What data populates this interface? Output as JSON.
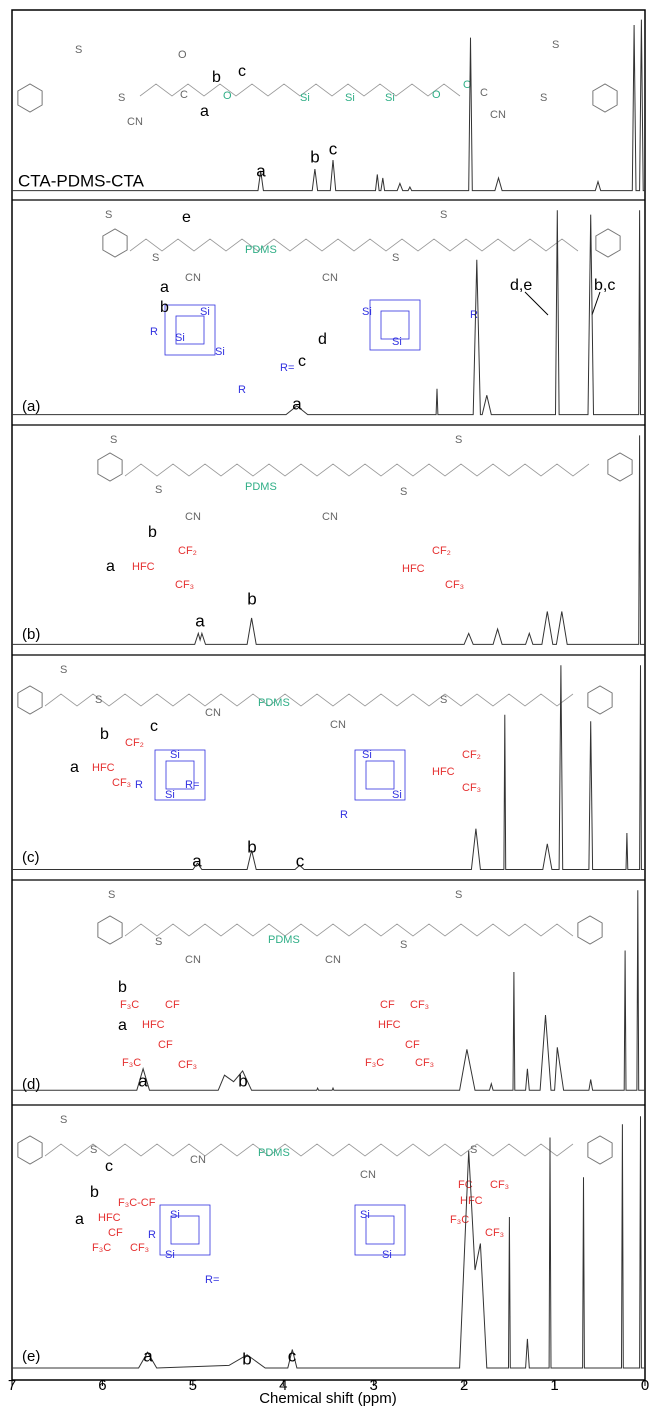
{
  "chart_data": {
    "type": "line",
    "xlabel": "Chemical shift (ppm)",
    "xlim": [
      7,
      0
    ],
    "xticks": [
      7,
      6,
      5,
      4,
      3,
      2,
      1,
      0
    ],
    "ylim": [
      0,
      100
    ],
    "panels": [
      {
        "label": "CTA-PDMS-CTA",
        "peak_labels": [
          "a",
          "b",
          "c"
        ],
        "structure": [
          {
            "text": "S",
            "color": "#666"
          },
          {
            "text": "S",
            "color": "#666"
          },
          {
            "text": "CN",
            "color": "#666"
          },
          {
            "text": "O",
            "color": "#666"
          },
          {
            "text": "C",
            "color": "#666"
          },
          {
            "text": "a",
            "color": "#000"
          },
          {
            "text": "b",
            "color": "#000"
          },
          {
            "text": "c",
            "color": "#000"
          },
          {
            "text": "O",
            "color": "#2fae86"
          },
          {
            "text": "Si",
            "color": "#2fae86"
          },
          {
            "text": "Si",
            "color": "#2fae86"
          },
          {
            "text": "Si",
            "color": "#2fae86"
          },
          {
            "text": "O",
            "color": "#2fae86"
          },
          {
            "text": "O",
            "color": "#2fae86"
          },
          {
            "text": "C",
            "color": "#666"
          },
          {
            "text": "CN",
            "color": "#666"
          },
          {
            "text": "S",
            "color": "#666"
          },
          {
            "text": "S",
            "color": "#666"
          }
        ],
        "series": [
          {
            "color": "#333",
            "x": [
              7,
              4.28,
              4.25,
              4.22,
              3.68,
              3.65,
              3.62,
              3.48,
              3.45,
              3.42,
              2.98,
              2.96,
              2.94,
              2.92,
              2.9,
              2.88,
              2.74,
              2.71,
              2.68,
              2.62,
              2.6,
              2.58,
              1.95,
              1.93,
              1.91,
              1.66,
              1.62,
              1.58,
              0.55,
              0.52,
              0.49,
              0.14,
              0.12,
              0.1,
              0.06,
              0.04,
              0.02,
              0
            ],
            "values": [
              3,
              3,
              14,
              3,
              3,
              15,
              3,
              3,
              20,
              3,
              3,
              12,
              3,
              3,
              10,
              3,
              3,
              7,
              3,
              3,
              5,
              3,
              3,
              88,
              3,
              3,
              10,
              3,
              3,
              8,
              3,
              3,
              95,
              3,
              3,
              98,
              3,
              3
            ]
          }
        ]
      },
      {
        "label": "(a)",
        "peak_labels": [
          "a"
        ],
        "structure": [
          {
            "text": "S",
            "color": "#666"
          },
          {
            "text": "S",
            "color": "#666"
          },
          {
            "text": "e",
            "color": "#000"
          },
          {
            "text": "CN",
            "color": "#666"
          },
          {
            "text": "PDMS",
            "color": "#2fae86"
          },
          {
            "text": "CN",
            "color": "#666"
          },
          {
            "text": "S",
            "color": "#666"
          },
          {
            "text": "S",
            "color": "#666"
          },
          {
            "text": "a",
            "color": "#000"
          },
          {
            "text": "b",
            "color": "#000"
          },
          {
            "text": "Si",
            "color": "#3030e0"
          },
          {
            "text": "Si",
            "color": "#3030e0"
          },
          {
            "text": "Si",
            "color": "#3030e0"
          },
          {
            "text": "Si",
            "color": "#3030e0"
          },
          {
            "text": "Si",
            "color": "#3030e0"
          },
          {
            "text": "R",
            "color": "#3030e0"
          },
          {
            "text": "R",
            "color": "#3030e0"
          },
          {
            "text": "R",
            "color": "#3030e0"
          },
          {
            "text": "R=",
            "color": "#3030e0"
          },
          {
            "text": "c",
            "color": "#000"
          },
          {
            "text": "d",
            "color": "#000"
          },
          {
            "text": "d,e",
            "color": "#000"
          },
          {
            "text": "b,c",
            "color": "#000"
          }
        ],
        "series": [
          {
            "color": "#333",
            "x": [
              7,
              3.97,
              3.85,
              3.73,
              2.31,
              2.3,
              2.29,
              1.9,
              1.86,
              1.82,
              1.8,
              1.75,
              1.7,
              0.99,
              0.97,
              0.95,
              0.63,
              0.6,
              0.57,
              0.07,
              0.06,
              0.05,
              0
            ],
            "values": [
              3,
              3,
              7,
              3,
              3,
              15,
              3,
              3,
              75,
              3,
              3,
              12,
              3,
              3,
              98,
              3,
              3,
              96,
              3,
              3,
              98,
              3,
              3
            ]
          }
        ]
      },
      {
        "label": "(b)",
        "peak_labels": [
          "a",
          "b"
        ],
        "structure": [
          {
            "text": "S",
            "color": "#666"
          },
          {
            "text": "S",
            "color": "#666"
          },
          {
            "text": "CN",
            "color": "#666"
          },
          {
            "text": "PDMS",
            "color": "#2fae86"
          },
          {
            "text": "CN",
            "color": "#666"
          },
          {
            "text": "S",
            "color": "#666"
          },
          {
            "text": "S",
            "color": "#666"
          },
          {
            "text": "b",
            "color": "#000"
          },
          {
            "text": "CF₂",
            "color": "#e53030"
          },
          {
            "text": "a",
            "color": "#000"
          },
          {
            "text": "HFC",
            "color": "#e53030"
          },
          {
            "text": "CF₃",
            "color": "#e53030"
          },
          {
            "text": "CF₂",
            "color": "#e53030"
          },
          {
            "text": "HFC",
            "color": "#e53030"
          },
          {
            "text": "CF₃",
            "color": "#e53030"
          }
        ],
        "series": [
          {
            "color": "#333",
            "x": [
              7,
              4.98,
              4.94,
              4.92,
              4.9,
              4.86,
              4.4,
              4.35,
              4.3,
              2.0,
              1.95,
              1.9,
              1.68,
              1.63,
              1.58,
              1.32,
              1.28,
              1.24,
              1.14,
              1.08,
              1.02,
              0.98,
              0.92,
              0.86,
              0.07,
              0.06,
              0.05,
              0
            ],
            "values": [
              3,
              3,
              8,
              5,
              8,
              3,
              3,
              15,
              3,
              3,
              8,
              3,
              3,
              10,
              3,
              3,
              8,
              3,
              3,
              18,
              3,
              3,
              18,
              3,
              3,
              98,
              3,
              3
            ]
          }
        ]
      },
      {
        "label": "(c)",
        "peak_labels": [
          "a",
          "b",
          "c"
        ],
        "structure": [
          {
            "text": "S",
            "color": "#666"
          },
          {
            "text": "S",
            "color": "#666"
          },
          {
            "text": "CN",
            "color": "#666"
          },
          {
            "text": "PDMS",
            "color": "#2fae86"
          },
          {
            "text": "CN",
            "color": "#666"
          },
          {
            "text": "S",
            "color": "#666"
          },
          {
            "text": "b",
            "color": "#000"
          },
          {
            "text": "c",
            "color": "#000"
          },
          {
            "text": "CF₂",
            "color": "#e53030"
          },
          {
            "text": "a",
            "color": "#000"
          },
          {
            "text": "HFC",
            "color": "#e53030"
          },
          {
            "text": "CF₃",
            "color": "#e53030"
          },
          {
            "text": "Si",
            "color": "#3030e0"
          },
          {
            "text": "Si",
            "color": "#3030e0"
          },
          {
            "text": "R",
            "color": "#3030e0"
          },
          {
            "text": "R=",
            "color": "#3030e0"
          },
          {
            "text": "Si",
            "color": "#3030e0"
          },
          {
            "text": "Si",
            "color": "#3030e0"
          },
          {
            "text": "R",
            "color": "#3030e0"
          },
          {
            "text": "CF₂",
            "color": "#e53030"
          },
          {
            "text": "HFC",
            "color": "#e53030"
          },
          {
            "text": "CF₃",
            "color": "#e53030"
          }
        ],
        "series": [
          {
            "color": "#333",
            "x": [
              7,
              5.0,
              4.95,
              4.9,
              4.4,
              4.35,
              4.3,
              3.87,
              3.82,
              3.77,
              1.92,
              1.87,
              1.82,
              1.56,
              1.55,
              1.54,
              1.13,
              1.08,
              1.03,
              0.95,
              0.93,
              0.91,
              0.62,
              0.6,
              0.58,
              0.21,
              0.2,
              0.19,
              0.06,
              0.05,
              0.04,
              0
            ],
            "values": [
              3,
              3,
              6,
              3,
              3,
              12,
              3,
              3,
              5,
              3,
              3,
              22,
              3,
              3,
              75,
              3,
              3,
              15,
              3,
              3,
              98,
              3,
              3,
              72,
              3,
              3,
              20,
              3,
              3,
              98,
              3,
              3
            ]
          }
        ]
      },
      {
        "label": "(d)",
        "peak_labels": [
          "a",
          "b"
        ],
        "structure": [
          {
            "text": "S",
            "color": "#666"
          },
          {
            "text": "S",
            "color": "#666"
          },
          {
            "text": "CN",
            "color": "#666"
          },
          {
            "text": "PDMS",
            "color": "#2fae86"
          },
          {
            "text": "CN",
            "color": "#666"
          },
          {
            "text": "S",
            "color": "#666"
          },
          {
            "text": "S",
            "color": "#666"
          },
          {
            "text": "b",
            "color": "#000"
          },
          {
            "text": "F₃C",
            "color": "#e53030"
          },
          {
            "text": "CF",
            "color": "#e53030"
          },
          {
            "text": "a",
            "color": "#000"
          },
          {
            "text": "HFC",
            "color": "#e53030"
          },
          {
            "text": "CF",
            "color": "#e53030"
          },
          {
            "text": "F₃C",
            "color": "#e53030"
          },
          {
            "text": "CF₃",
            "color": "#e53030"
          },
          {
            "text": "CF",
            "color": "#e53030"
          },
          {
            "text": "CF₃",
            "color": "#e53030"
          },
          {
            "text": "HFC",
            "color": "#e53030"
          },
          {
            "text": "CF",
            "color": "#e53030"
          },
          {
            "text": "F₃C",
            "color": "#e53030"
          },
          {
            "text": "CF₃",
            "color": "#e53030"
          }
        ],
        "series": [
          {
            "color": "#333",
            "x": [
              7,
              5.62,
              5.55,
              5.48,
              4.72,
              4.65,
              4.55,
              4.45,
              4.35,
              3.63,
              3.62,
              3.61,
              3.46,
              3.45,
              3.44,
              2.05,
              1.97,
              1.88,
              1.72,
              1.7,
              1.68,
              1.46,
              1.45,
              1.44,
              1.32,
              1.3,
              1.28,
              1.16,
              1.1,
              1.04,
              1.0,
              0.97,
              0.9,
              0.62,
              0.6,
              0.58,
              0.23,
              0.22,
              0.21,
              0.09,
              0.08,
              0.07,
              0
            ],
            "values": [
              5,
              5,
              15,
              5,
              5,
              12,
              9,
              14,
              5,
              5,
              6,
              5,
              5,
              6,
              5,
              5,
              24,
              5,
              5,
              8,
              5,
              5,
              60,
              5,
              5,
              15,
              5,
              5,
              40,
              5,
              5,
              25,
              5,
              5,
              10,
              5,
              5,
              70,
              5,
              5,
              98,
              5,
              5
            ]
          }
        ]
      },
      {
        "label": "(e)",
        "peak_labels": [
          "a",
          "b",
          "c"
        ],
        "structure": [
          {
            "text": "S",
            "color": "#666"
          },
          {
            "text": "S",
            "color": "#666"
          },
          {
            "text": "CN",
            "color": "#666"
          },
          {
            "text": "PDMS",
            "color": "#2fae86"
          },
          {
            "text": "CN",
            "color": "#666"
          },
          {
            "text": "S",
            "color": "#666"
          },
          {
            "text": "c",
            "color": "#000"
          },
          {
            "text": "b",
            "color": "#000"
          },
          {
            "text": "F₃C-CF",
            "color": "#e53030"
          },
          {
            "text": "a",
            "color": "#000"
          },
          {
            "text": "HFC",
            "color": "#e53030"
          },
          {
            "text": "CF",
            "color": "#e53030"
          },
          {
            "text": "F₃C",
            "color": "#e53030"
          },
          {
            "text": "CF₃",
            "color": "#e53030"
          },
          {
            "text": "Si",
            "color": "#3030e0"
          },
          {
            "text": "Si",
            "color": "#3030e0"
          },
          {
            "text": "R",
            "color": "#3030e0"
          },
          {
            "text": "R=",
            "color": "#3030e0"
          },
          {
            "text": "Si",
            "color": "#3030e0"
          },
          {
            "text": "Si",
            "color": "#3030e0"
          },
          {
            "text": "FC",
            "color": "#e53030"
          },
          {
            "text": "CF₃",
            "color": "#e53030"
          },
          {
            "text": "HFC",
            "color": "#e53030"
          },
          {
            "text": "F₃C",
            "color": "#e53030"
          },
          {
            "text": "CF₃",
            "color": "#e53030"
          }
        ],
        "series": [
          {
            "color": "#333",
            "x": [
              7,
              5.6,
              5.5,
              5.4,
              4.6,
              4.4,
              4.2,
              3.95,
              3.9,
              3.85,
              2.05,
              1.95,
              1.88,
              1.82,
              1.75,
              1.51,
              1.5,
              1.49,
              1.32,
              1.3,
              1.28,
              1.06,
              1.05,
              1.04,
              0.69,
              0.68,
              0.67,
              0.26,
              0.25,
              0.24,
              0.06,
              0.05,
              0.04,
              0
            ],
            "values": [
              3,
              3,
              9,
              3,
              4,
              8,
              3,
              3,
              10,
              3,
              3,
              85,
              40,
              50,
              3,
              3,
              60,
              3,
              3,
              14,
              3,
              3,
              90,
              3,
              3,
              75,
              3,
              3,
              95,
              3,
              3,
              98,
              3,
              3
            ]
          }
        ]
      }
    ]
  }
}
